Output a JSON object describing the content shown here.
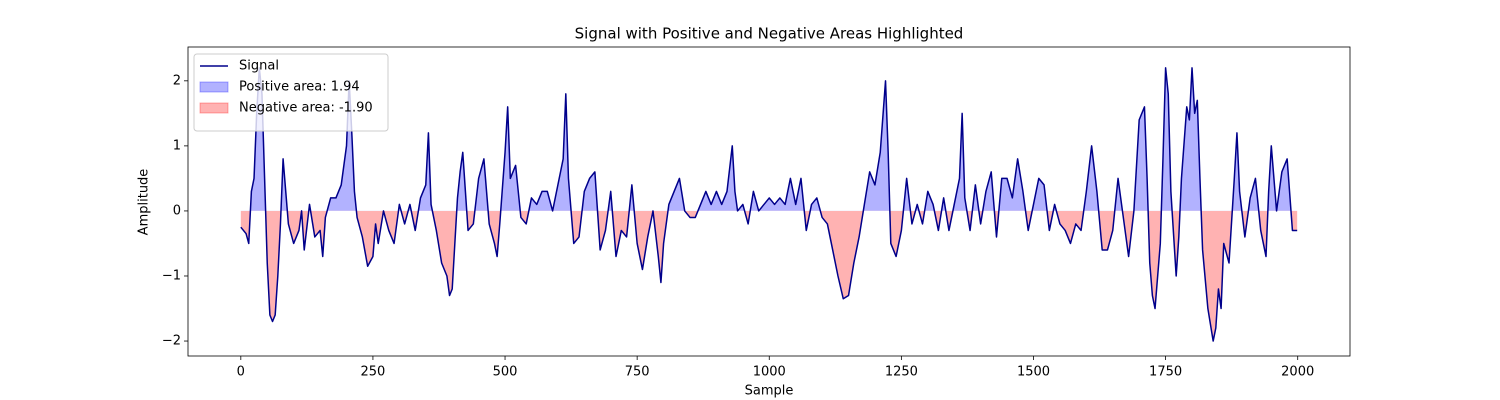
{
  "chart_data": {
    "type": "line",
    "title": "Signal with Positive and Negative Areas Highlighted",
    "xlabel": "Sample",
    "ylabel": "Amplitude",
    "x": [
      0,
      10,
      15,
      20,
      25,
      30,
      35,
      40,
      45,
      50,
      55,
      60,
      65,
      70,
      75,
      80,
      85,
      90,
      100,
      110,
      115,
      120,
      130,
      140,
      150,
      155,
      160,
      170,
      180,
      190,
      200,
      205,
      210,
      215,
      220,
      230,
      240,
      250,
      255,
      260,
      270,
      280,
      290,
      300,
      310,
      320,
      330,
      340,
      350,
      355,
      360,
      370,
      380,
      390,
      395,
      400,
      410,
      415,
      420,
      425,
      430,
      440,
      450,
      460,
      470,
      480,
      485,
      490,
      500,
      505,
      510,
      520,
      530,
      540,
      550,
      560,
      570,
      580,
      590,
      600,
      610,
      615,
      620,
      630,
      640,
      650,
      660,
      670,
      680,
      690,
      700,
      710,
      720,
      730,
      740,
      750,
      760,
      770,
      780,
      790,
      795,
      800,
      810,
      820,
      830,
      840,
      850,
      860,
      870,
      880,
      890,
      900,
      910,
      920,
      930,
      935,
      940,
      950,
      960,
      970,
      980,
      990,
      1000,
      1010,
      1020,
      1030,
      1040,
      1050,
      1060,
      1070,
      1080,
      1090,
      1100,
      1110,
      1120,
      1130,
      1140,
      1150,
      1160,
      1170,
      1180,
      1190,
      1200,
      1210,
      1220,
      1225,
      1230,
      1240,
      1250,
      1260,
      1270,
      1280,
      1290,
      1300,
      1310,
      1320,
      1330,
      1340,
      1350,
      1360,
      1365,
      1370,
      1380,
      1390,
      1400,
      1410,
      1420,
      1430,
      1440,
      1450,
      1460,
      1470,
      1480,
      1490,
      1500,
      1510,
      1520,
      1530,
      1540,
      1550,
      1560,
      1570,
      1580,
      1590,
      1600,
      1610,
      1620,
      1630,
      1640,
      1650,
      1660,
      1670,
      1680,
      1690,
      1700,
      1710,
      1715,
      1720,
      1725,
      1730,
      1740,
      1745,
      1750,
      1755,
      1760,
      1770,
      1775,
      1780,
      1790,
      1795,
      1800,
      1805,
      1810,
      1815,
      1820,
      1830,
      1840,
      1845,
      1850,
      1855,
      1860,
      1870,
      1880,
      1885,
      1890,
      1900,
      1910,
      1920,
      1930,
      1940,
      1945,
      1950,
      1960,
      1970,
      1980,
      1990,
      1999
    ],
    "series": [
      {
        "name": "Signal",
        "color": "#00008b",
        "values": [
          -0.25,
          -0.35,
          -0.5,
          0.3,
          0.5,
          1.5,
          2.2,
          1.8,
          0.5,
          -0.8,
          -1.6,
          -1.7,
          -1.6,
          -1.0,
          -0.2,
          0.8,
          0.3,
          -0.2,
          -0.5,
          -0.3,
          0.0,
          -0.6,
          0.1,
          -0.4,
          -0.3,
          -0.7,
          -0.1,
          0.2,
          0.2,
          0.4,
          1.0,
          2.0,
          1.2,
          0.3,
          -0.1,
          -0.4,
          -0.85,
          -0.7,
          -0.2,
          -0.5,
          0.0,
          -0.3,
          -0.5,
          0.1,
          -0.2,
          0.1,
          -0.3,
          0.2,
          0.4,
          1.2,
          0.1,
          -0.3,
          -0.8,
          -1.0,
          -1.3,
          -1.2,
          0.2,
          0.6,
          0.9,
          0.3,
          -0.3,
          -0.2,
          0.5,
          0.8,
          -0.2,
          -0.5,
          -0.7,
          -0.2,
          0.9,
          1.6,
          0.5,
          0.7,
          -0.1,
          -0.2,
          0.2,
          0.1,
          0.3,
          0.3,
          0.0,
          0.4,
          0.8,
          1.8,
          0.5,
          -0.5,
          -0.4,
          0.3,
          0.5,
          0.6,
          -0.6,
          -0.3,
          0.3,
          -0.7,
          -0.3,
          -0.4,
          0.4,
          -0.5,
          -0.9,
          -0.4,
          0.0,
          -0.7,
          -1.1,
          -0.5,
          0.1,
          0.3,
          0.5,
          0.0,
          -0.1,
          -0.1,
          0.1,
          0.3,
          0.1,
          0.3,
          0.1,
          0.3,
          1.0,
          0.3,
          0.0,
          0.1,
          -0.2,
          0.3,
          0.0,
          0.1,
          0.2,
          0.1,
          0.2,
          0.1,
          0.5,
          0.1,
          0.5,
          -0.3,
          0.1,
          0.2,
          -0.1,
          -0.2,
          -0.6,
          -1.0,
          -1.35,
          -1.3,
          -0.8,
          -0.4,
          0.1,
          0.6,
          0.4,
          0.9,
          2.0,
          0.9,
          -0.5,
          -0.7,
          -0.3,
          0.5,
          -0.2,
          0.1,
          -0.2,
          0.3,
          0.1,
          -0.3,
          0.2,
          -0.3,
          0.1,
          0.5,
          1.5,
          0.2,
          -0.3,
          0.4,
          -0.2,
          0.3,
          0.6,
          -0.4,
          0.5,
          0.5,
          0.2,
          0.8,
          0.3,
          -0.3,
          0.1,
          0.5,
          0.4,
          -0.3,
          0.1,
          -0.2,
          -0.3,
          -0.5,
          -0.2,
          -0.3,
          0.3,
          1.0,
          0.3,
          -0.6,
          -0.6,
          -0.3,
          0.5,
          -0.1,
          -0.7,
          0.0,
          1.4,
          1.6,
          0.5,
          -0.8,
          -1.3,
          -1.5,
          -0.5,
          0.8,
          2.2,
          1.8,
          0.3,
          -1.0,
          -0.4,
          0.5,
          1.6,
          1.4,
          2.2,
          1.5,
          1.7,
          0.5,
          -0.6,
          -1.5,
          -2.0,
          -1.8,
          -1.2,
          -1.5,
          -0.5,
          -0.8,
          0.5,
          1.2,
          0.3,
          -0.4,
          0.2,
          0.5,
          -0.3,
          -0.7,
          0.3,
          1.0,
          0.0,
          0.6,
          0.8,
          -0.3,
          -0.3
        ]
      }
    ],
    "fills": [
      {
        "name": "Positive area: 1.94",
        "color": "#0000ff",
        "side": "positive"
      },
      {
        "name": "Negative area: -1.90",
        "color": "#ff0000",
        "side": "negative"
      }
    ],
    "xlim": [
      -99.95,
      2098.95
    ],
    "ylim": [
      -2.23,
      2.52
    ],
    "xticks": [
      0,
      250,
      500,
      750,
      1000,
      1250,
      1500,
      1750,
      2000
    ],
    "yticks": [
      {
        "value": -2,
        "label": "−2"
      },
      {
        "value": -1,
        "label": "−1"
      },
      0,
      1,
      2
    ],
    "legend": "upper left"
  }
}
